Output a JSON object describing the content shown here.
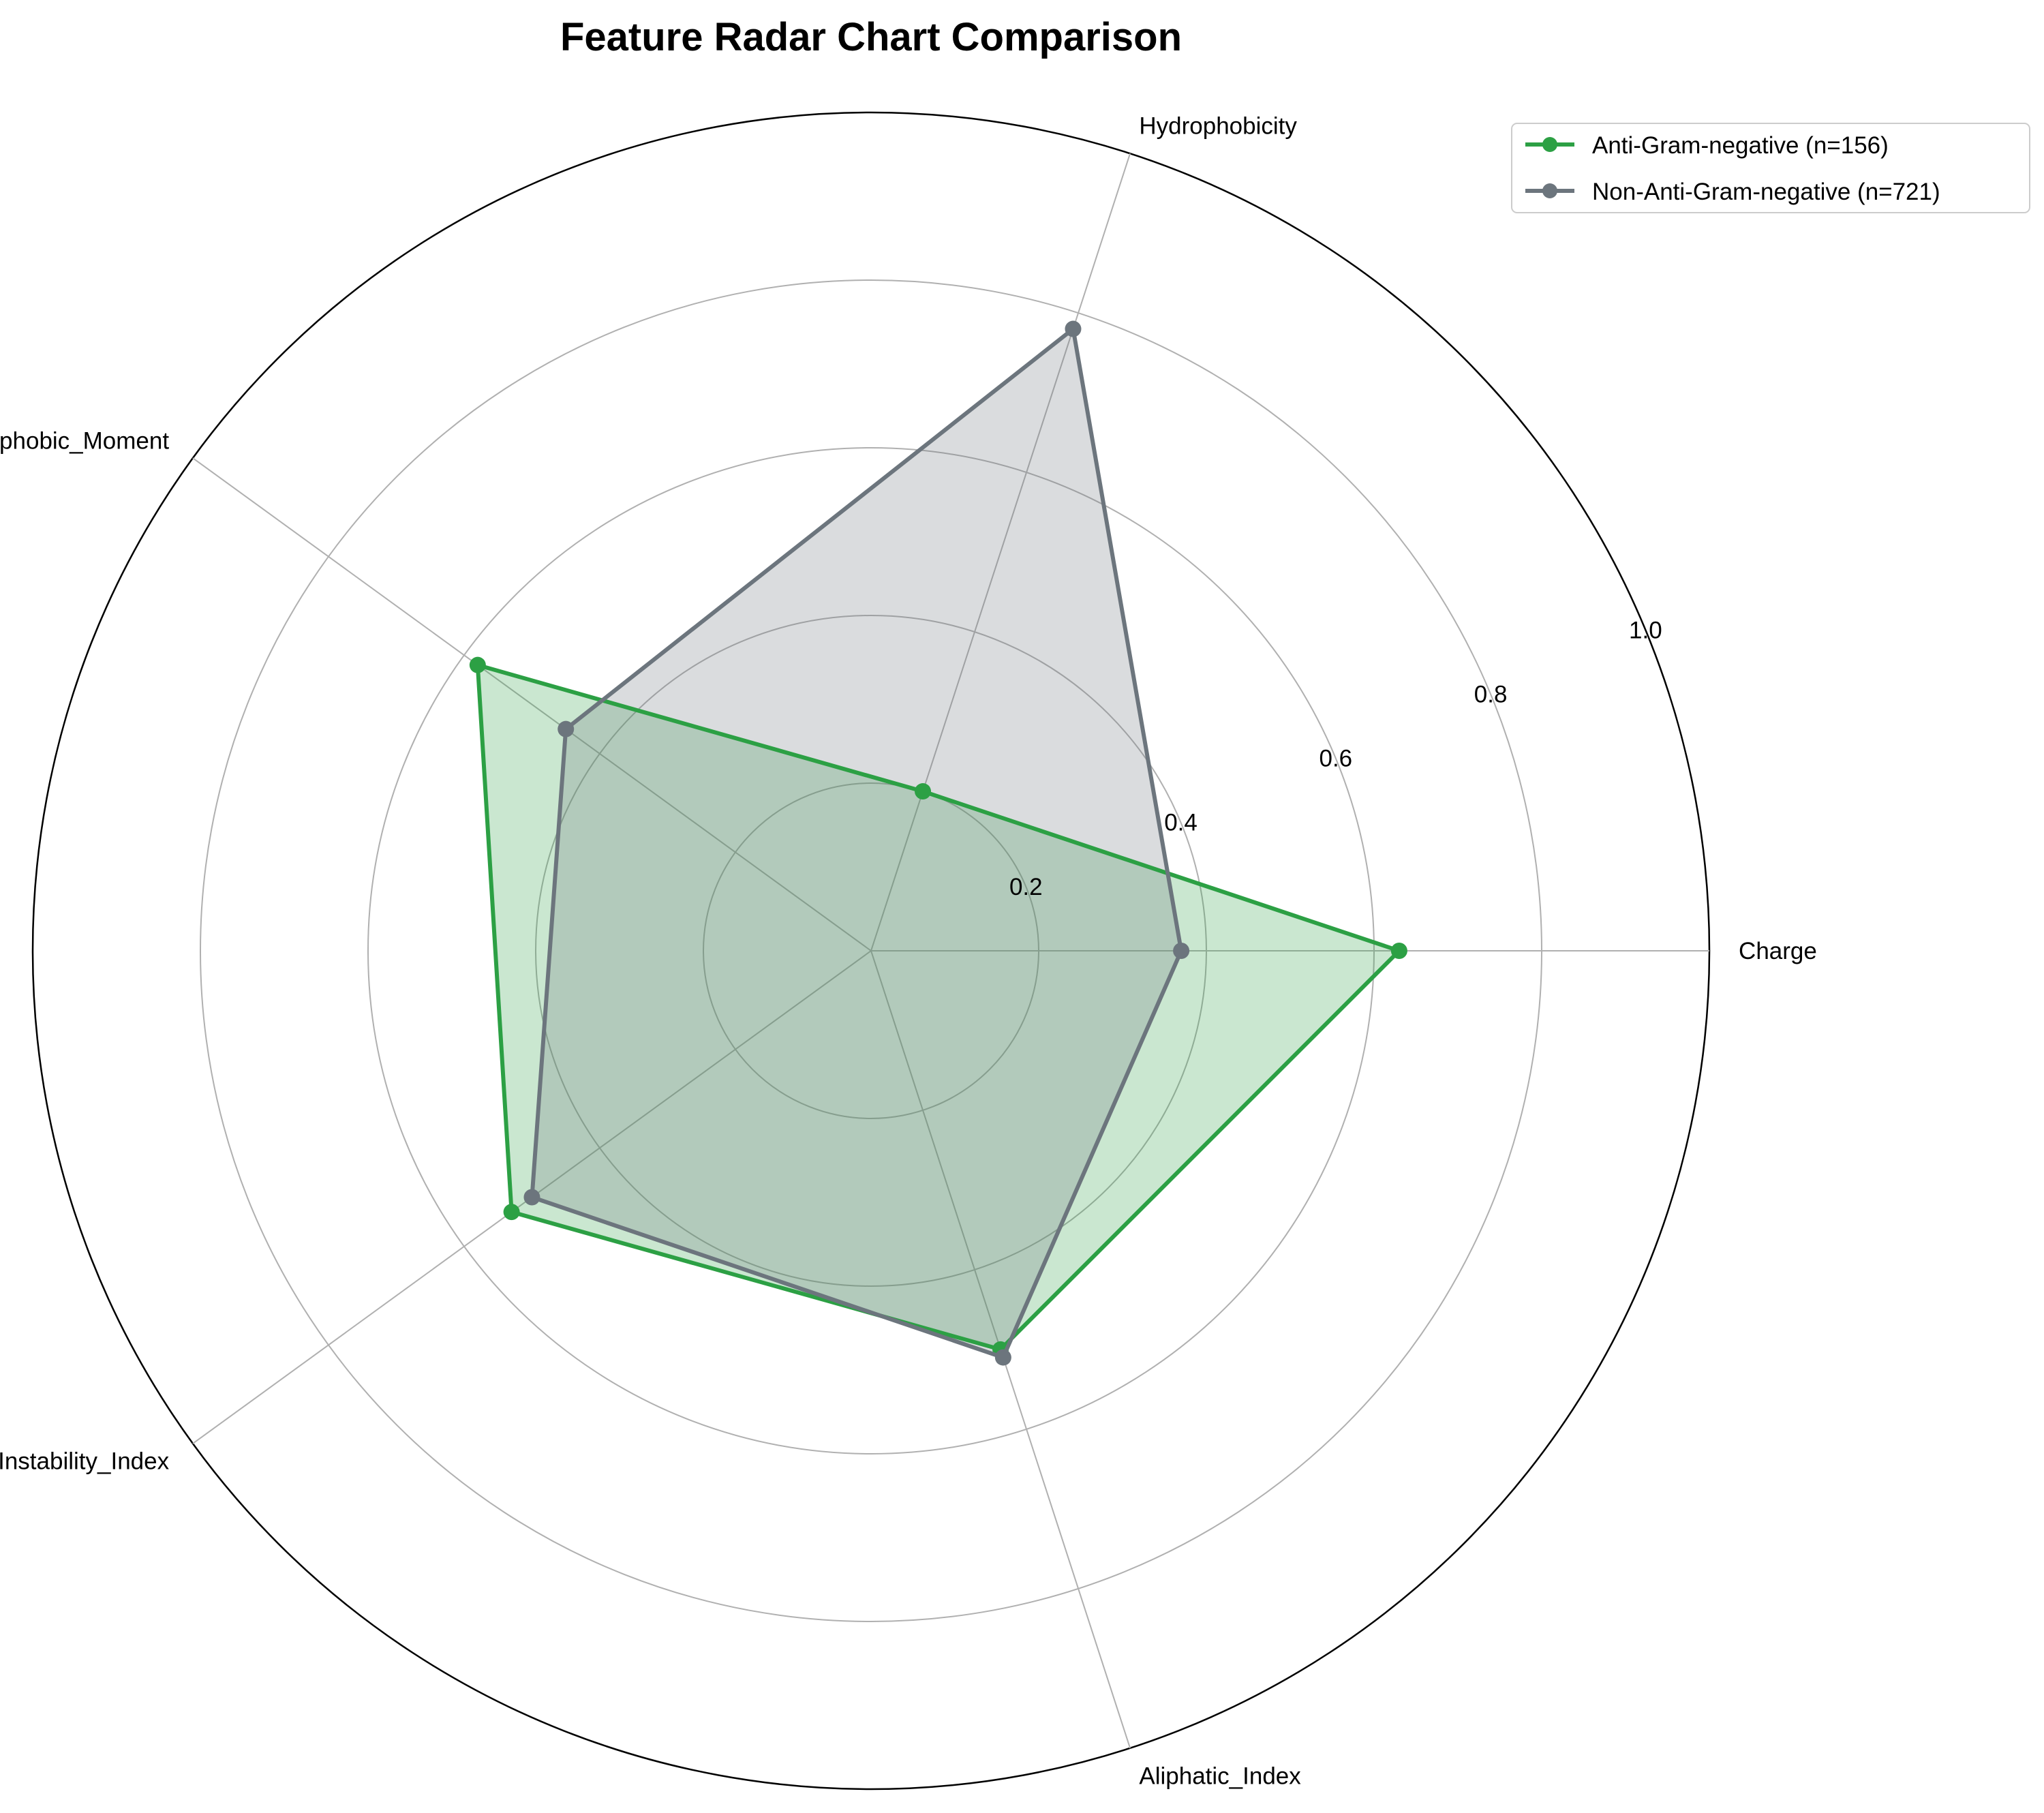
{
  "chart_data": {
    "type": "radar",
    "title": "Feature Radar Chart Comparison",
    "axes": [
      "Charge",
      "Hydrophobicity",
      "Hydrophobic_Moment",
      "Instability_Index",
      "Aliphatic_Index"
    ],
    "rlim": [
      0,
      1.0
    ],
    "rticks": [
      0.2,
      0.4,
      0.6,
      0.8,
      1.0
    ],
    "rtick_labels": [
      "0.2",
      "0.4",
      "0.6",
      "0.8",
      "1.0"
    ],
    "grid": true,
    "legend_position": "top-right",
    "series": [
      {
        "name": "Anti-Gram-negative (n=156)",
        "color": "#2ca044",
        "values": [
          0.63,
          0.2,
          0.58,
          0.53,
          0.5
        ]
      },
      {
        "name": "Non-Anti-Gram-negative (n=721)",
        "color": "#6c757d",
        "values": [
          0.37,
          0.78,
          0.45,
          0.5,
          0.51
        ]
      }
    ]
  }
}
